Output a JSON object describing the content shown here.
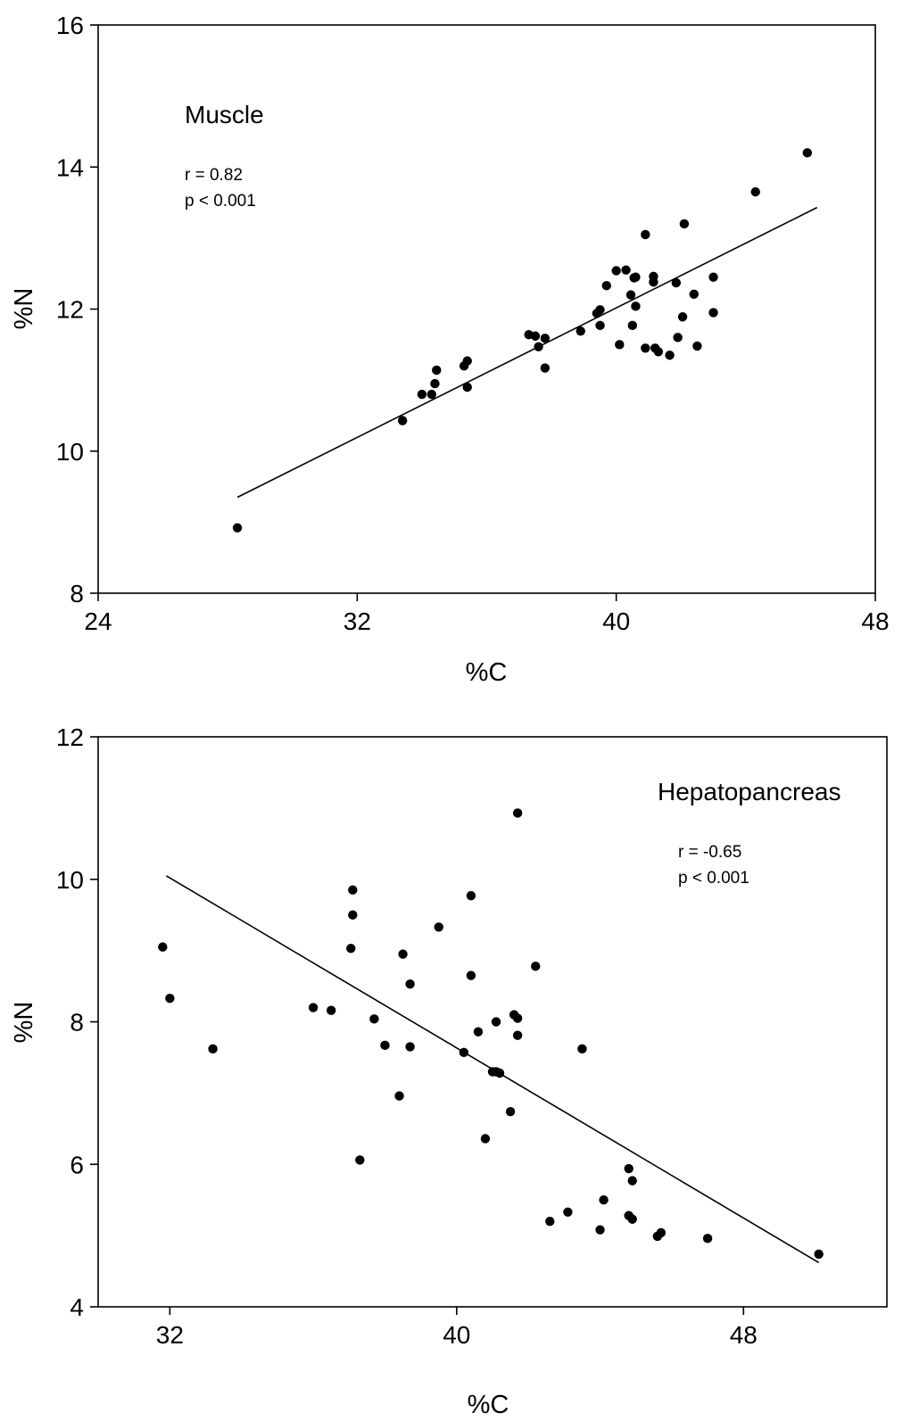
{
  "chart_data": [
    {
      "type": "scatter",
      "title": "",
      "panel_label": "Muscle",
      "stats": [
        "r = 0.82",
        "p < 0.001"
      ],
      "xlabel": "%C",
      "ylabel": "%N",
      "xlim": [
        24,
        48
      ],
      "ylim": [
        8,
        16
      ],
      "xticks": [
        24,
        32,
        40,
        48
      ],
      "yticks": [
        8,
        10,
        12,
        14,
        16
      ],
      "grid": false,
      "regression": {
        "x": [
          28.3,
          46.2
        ],
        "y": [
          9.35,
          13.43
        ]
      },
      "points": [
        [
          28.3,
          8.92
        ],
        [
          33.4,
          10.43
        ],
        [
          34.0,
          10.8
        ],
        [
          34.3,
          10.8
        ],
        [
          34.4,
          10.95
        ],
        [
          34.45,
          11.14
        ],
        [
          35.3,
          11.2
        ],
        [
          35.4,
          11.27
        ],
        [
          35.4,
          10.9
        ],
        [
          37.3,
          11.64
        ],
        [
          37.5,
          11.62
        ],
        [
          37.6,
          11.47
        ],
        [
          37.8,
          11.59
        ],
        [
          37.8,
          11.17
        ],
        [
          38.9,
          11.69
        ],
        [
          39.4,
          11.94
        ],
        [
          39.7,
          12.33
        ],
        [
          40.0,
          12.54
        ],
        [
          40.3,
          12.55
        ],
        [
          39.5,
          11.99
        ],
        [
          39.5,
          11.77
        ],
        [
          40.6,
          12.45
        ],
        [
          40.1,
          11.5
        ],
        [
          40.45,
          12.2
        ],
        [
          40.55,
          12.44
        ],
        [
          40.6,
          12.04
        ],
        [
          40.5,
          11.77
        ],
        [
          40.9,
          13.05
        ],
        [
          41.15,
          12.46
        ],
        [
          41.15,
          12.38
        ],
        [
          40.9,
          11.45
        ],
        [
          41.2,
          11.45
        ],
        [
          41.3,
          11.4
        ],
        [
          41.65,
          11.35
        ],
        [
          41.85,
          12.37
        ],
        [
          42.05,
          11.89
        ],
        [
          42.1,
          13.2
        ],
        [
          42.4,
          12.21
        ],
        [
          41.9,
          11.6
        ],
        [
          42.5,
          11.48
        ],
        [
          43.0,
          12.45
        ],
        [
          43.0,
          11.95
        ],
        [
          44.3,
          13.65
        ],
        [
          45.9,
          14.2
        ]
      ]
    },
    {
      "type": "scatter",
      "title": "",
      "panel_label": "Hepatopancreas",
      "stats": [
        "r = -0.65",
        "p < 0.001"
      ],
      "xlabel": "%C",
      "ylabel": "%N",
      "xlim": [
        30,
        52
      ],
      "ylim": [
        4,
        12
      ],
      "xticks": [
        32,
        40,
        48
      ],
      "yticks": [
        4,
        6,
        8,
        10,
        12
      ],
      "grid": false,
      "regression": {
        "x": [
          31.9,
          50.1
        ],
        "y": [
          10.05,
          4.62
        ]
      },
      "points": [
        [
          31.8,
          9.05
        ],
        [
          32.0,
          8.33
        ],
        [
          33.2,
          7.62
        ],
        [
          36.0,
          8.2
        ],
        [
          36.5,
          8.16
        ],
        [
          37.1,
          9.85
        ],
        [
          37.1,
          9.5
        ],
        [
          37.05,
          9.03
        ],
        [
          37.3,
          6.06
        ],
        [
          37.7,
          8.04
        ],
        [
          38.0,
          7.67
        ],
        [
          38.5,
          8.95
        ],
        [
          38.4,
          6.96
        ],
        [
          38.7,
          8.53
        ],
        [
          38.7,
          7.65
        ],
        [
          39.5,
          9.33
        ],
        [
          40.2,
          7.57
        ],
        [
          40.4,
          9.77
        ],
        [
          40.4,
          8.65
        ],
        [
          40.6,
          7.86
        ],
        [
          40.8,
          6.36
        ],
        [
          41.0,
          7.3
        ],
        [
          41.1,
          8.0
        ],
        [
          41.1,
          7.3
        ],
        [
          41.2,
          7.28
        ],
        [
          41.5,
          6.74
        ],
        [
          41.7,
          10.93
        ],
        [
          41.6,
          8.1
        ],
        [
          41.7,
          8.05
        ],
        [
          41.7,
          7.81
        ],
        [
          42.2,
          8.78
        ],
        [
          42.6,
          5.2
        ],
        [
          43.1,
          5.33
        ],
        [
          43.5,
          7.62
        ],
        [
          44.0,
          5.08
        ],
        [
          44.1,
          5.5
        ],
        [
          44.8,
          5.94
        ],
        [
          44.8,
          5.28
        ],
        [
          44.9,
          5.77
        ],
        [
          44.9,
          5.23
        ],
        [
          45.6,
          4.99
        ],
        [
          45.7,
          5.04
        ],
        [
          47.0,
          4.96
        ],
        [
          50.1,
          4.74
        ]
      ]
    }
  ]
}
